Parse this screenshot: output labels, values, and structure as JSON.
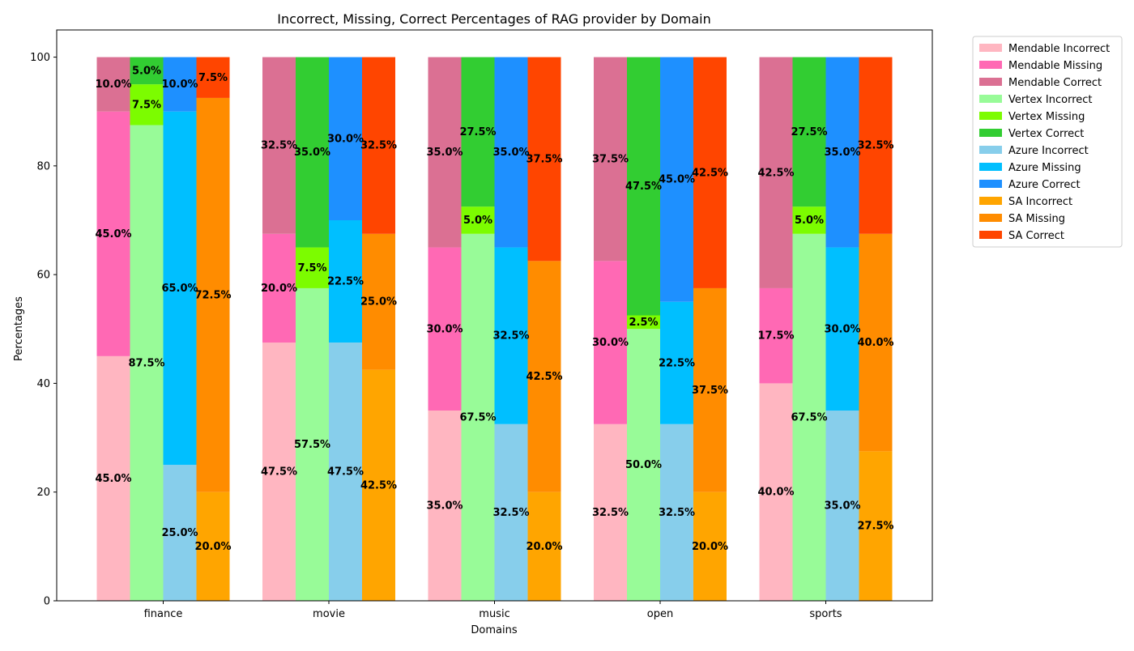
{
  "chart_data": {
    "type": "bar",
    "stacked": true,
    "grouped": true,
    "title": "Incorrect, Missing, Correct Percentages of RAG provider by Domain",
    "xlabel": "Domains",
    "ylabel": "Percentages",
    "ylim": [
      0,
      105
    ],
    "yticks": [
      "0",
      "20",
      "40",
      "60",
      "80",
      "100"
    ],
    "grid": false,
    "legend_position": "outside-top-right",
    "categories": [
      "finance",
      "movie",
      "music",
      "open",
      "sports"
    ],
    "providers": [
      {
        "name": "Mendable",
        "segments": [
          {
            "name": "Mendable Incorrect",
            "color": "#ffb6c1",
            "values": [
              45.0,
              47.5,
              35.0,
              32.5,
              40.0
            ]
          },
          {
            "name": "Mendable Missing",
            "color": "#ff69b4",
            "values": [
              45.0,
              20.0,
              30.0,
              30.0,
              17.5
            ]
          },
          {
            "name": "Mendable Correct",
            "color": "#db7093",
            "values": [
              10.0,
              32.5,
              35.0,
              37.5,
              42.5
            ]
          }
        ]
      },
      {
        "name": "Vertex",
        "segments": [
          {
            "name": "Vertex Incorrect",
            "color": "#98fb98",
            "values": [
              87.5,
              57.5,
              67.5,
              50.0,
              67.5
            ]
          },
          {
            "name": "Vertex Missing",
            "color": "#7cfc00",
            "values": [
              7.5,
              7.5,
              5.0,
              2.5,
              5.0
            ]
          },
          {
            "name": "Vertex Correct",
            "color": "#32cd32",
            "values": [
              5.0,
              35.0,
              27.5,
              47.5,
              27.5
            ]
          }
        ]
      },
      {
        "name": "Azure",
        "segments": [
          {
            "name": "Azure Incorrect",
            "color": "#87ceeb",
            "values": [
              25.0,
              47.5,
              32.5,
              32.5,
              35.0
            ]
          },
          {
            "name": "Azure Missing",
            "color": "#00bfff",
            "values": [
              65.0,
              22.5,
              32.5,
              22.5,
              30.0
            ]
          },
          {
            "name": "Azure Correct",
            "color": "#1e90ff",
            "values": [
              10.0,
              30.0,
              35.0,
              45.0,
              35.0
            ]
          }
        ]
      },
      {
        "name": "SA",
        "segments": [
          {
            "name": "SA Incorrect",
            "color": "#ffa500",
            "values": [
              20.0,
              42.5,
              20.0,
              20.0,
              27.5
            ]
          },
          {
            "name": "SA Missing",
            "color": "#ff8c00",
            "values": [
              72.5,
              25.0,
              42.5,
              37.5,
              40.0
            ]
          },
          {
            "name": "SA Correct",
            "color": "#ff4500",
            "values": [
              7.5,
              32.5,
              37.5,
              42.5,
              32.5
            ]
          }
        ]
      }
    ]
  }
}
